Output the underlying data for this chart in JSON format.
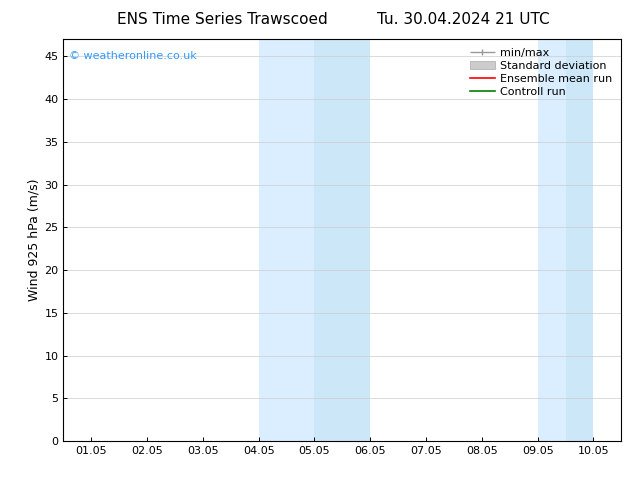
{
  "title_left": "ENS Time Series Trawscoed",
  "title_right": "Tu. 30.04.2024 21 UTC",
  "ylabel": "Wind 925 hPa (m/s)",
  "xlabel_ticks": [
    "01.05",
    "02.05",
    "03.05",
    "04.05",
    "05.05",
    "06.05",
    "07.05",
    "08.05",
    "09.05",
    "10.05"
  ],
  "xlim_min": 0,
  "xlim_max": 9,
  "ylim_min": 0,
  "ylim_max": 47,
  "yticks": [
    0,
    5,
    10,
    15,
    20,
    25,
    30,
    35,
    40,
    45
  ],
  "shaded_bands": [
    {
      "x_start": 3.0,
      "x_end": 4.0,
      "color": "#d6eaf8"
    },
    {
      "x_start": 4.0,
      "x_end": 5.0,
      "color": "#cce5f5"
    },
    {
      "x_start": 8.0,
      "x_end": 8.5,
      "color": "#d6eaf8"
    },
    {
      "x_start": 8.5,
      "x_end": 9.0,
      "color": "#cce5f5"
    }
  ],
  "legend_items": [
    {
      "label": "min/max",
      "color": "#999999"
    },
    {
      "label": "Standard deviation",
      "color": "#cccccc"
    },
    {
      "label": "Ensemble mean run",
      "color": "red"
    },
    {
      "label": "Controll run",
      "color": "green"
    }
  ],
  "watermark_text": "© weatheronline.co.uk",
  "watermark_color": "#3399ff",
  "background_color": "#ffffff",
  "title_fontsize": 11,
  "tick_fontsize": 8,
  "ylabel_fontsize": 9,
  "legend_fontsize": 8
}
